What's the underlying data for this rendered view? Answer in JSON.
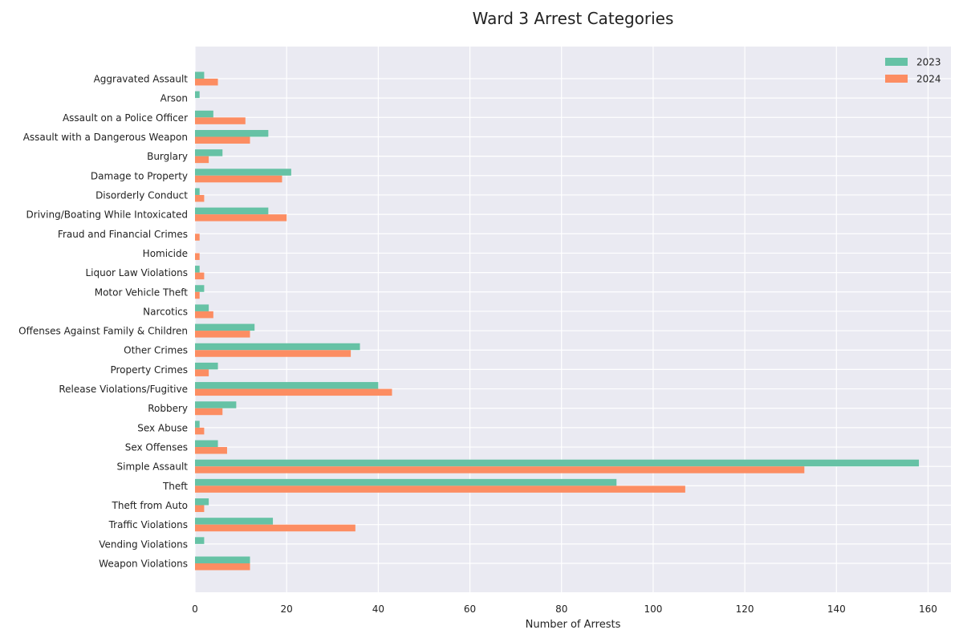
{
  "chart_data": {
    "type": "bar",
    "orientation": "horizontal",
    "title": "Ward 3 Arrest Categories",
    "xlabel": "Number of Arrests",
    "ylabel": "",
    "xlim": [
      0,
      165
    ],
    "xticks": [
      0,
      20,
      40,
      60,
      80,
      100,
      120,
      140,
      160
    ],
    "grid": true,
    "legend_position": "top-right",
    "categories": [
      "Aggravated Assault",
      "Arson",
      "Assault on a Police Officer",
      "Assault with a Dangerous Weapon",
      "Burglary",
      "Damage to Property",
      "Disorderly Conduct",
      "Driving/Boating While Intoxicated",
      "Fraud and Financial Crimes",
      "Homicide",
      "Liquor Law Violations",
      "Motor Vehicle Theft",
      "Narcotics",
      "Offenses Against Family & Children",
      "Other Crimes",
      "Property Crimes",
      "Release Violations/Fugitive",
      "Robbery",
      "Sex Abuse",
      "Sex Offenses",
      "Simple Assault",
      "Theft",
      "Theft from Auto",
      "Traffic Violations",
      "Vending Violations",
      "Weapon Violations"
    ],
    "series": [
      {
        "name": "2023",
        "color": "#66c2a5",
        "values": [
          2,
          1,
          4,
          16,
          6,
          21,
          1,
          16,
          0,
          0,
          1,
          2,
          3,
          13,
          36,
          5,
          40,
          9,
          1,
          5,
          158,
          92,
          3,
          17,
          2,
          12
        ]
      },
      {
        "name": "2024",
        "color": "#fc8d62",
        "values": [
          5,
          0,
          11,
          12,
          3,
          19,
          2,
          20,
          1,
          1,
          2,
          1,
          4,
          12,
          34,
          3,
          43,
          6,
          2,
          7,
          133,
          107,
          2,
          35,
          0,
          12
        ]
      }
    ]
  },
  "colors": {
    "plot_background": "#eaeaf2",
    "grid": "#ffffff",
    "text": "#222222"
  }
}
